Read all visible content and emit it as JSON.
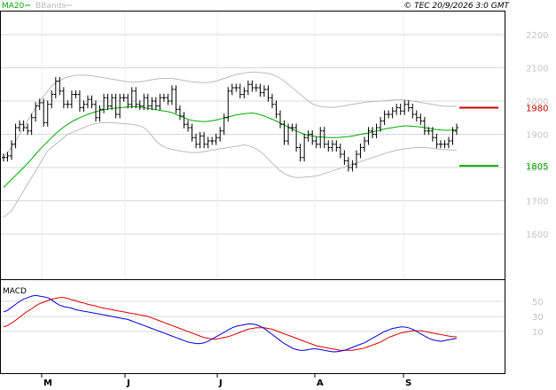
{
  "header": {
    "copyright": "© TEC 20/9/2026 3:0 GMT",
    "legend_ma": "MA20",
    "legend_bb": "BBands"
  },
  "chart_data": [
    {
      "type": "line",
      "title": "",
      "overlays": [
        "MA20",
        "BBands"
      ],
      "y_ticks": [
        "2200",
        "2100",
        "2000",
        "1900",
        "1800",
        "1700",
        "1600"
      ],
      "ylim": [
        1500,
        2300
      ],
      "x_ticks": [
        "M",
        "J",
        "J",
        "A",
        "S"
      ],
      "grid": true,
      "colors": {
        "price": "#000000",
        "ma": "#00aa00",
        "bbands": "#bbbbbb",
        "resistance": "#cc0000",
        "support": "#00aa00"
      },
      "levels": [
        {
          "label": "1980",
          "value": 1980,
          "kind": "resistance"
        },
        {
          "label": "1805",
          "value": 1805,
          "kind": "support"
        }
      ],
      "price_close": [
        1830,
        1835,
        1870,
        1920,
        1930,
        1920,
        1910,
        1950,
        1985,
        1995,
        1935,
        1990,
        2020,
        2060,
        2030,
        1990,
        1990,
        2020,
        2020,
        1980,
        1990,
        2005,
        1990,
        1950,
        1975,
        2010,
        1985,
        2010,
        1960,
        2010,
        2010,
        1990,
        2030,
        1990,
        1985,
        2010,
        1985,
        2000,
        1985,
        2010,
        2010,
        2000,
        2035,
        1975,
        1955,
        1930,
        1920,
        1890,
        1870,
        1895,
        1870,
        1880,
        1880,
        1890,
        1910,
        1950,
        2030,
        2040,
        2040,
        2020,
        2030,
        2050,
        2040,
        2040,
        2025,
        2035,
        2010,
        1990,
        1960,
        1930,
        1880,
        1920,
        1920,
        1860,
        1830,
        1890,
        1900,
        1880,
        1870,
        1910,
        1870,
        1860,
        1870,
        1860,
        1840,
        1820,
        1800,
        1810,
        1840,
        1860,
        1880,
        1910,
        1900,
        1920,
        1940,
        1960,
        1960,
        1970,
        1980,
        1970,
        1990,
        1980,
        1960,
        1950,
        1940,
        1910,
        1910,
        1890,
        1870,
        1870,
        1870,
        1880,
        1910,
        1920
      ],
      "ma20": [
        1740,
        1752,
        1764,
        1776,
        1788,
        1800,
        1812,
        1826,
        1840,
        1854,
        1866,
        1878,
        1890,
        1902,
        1912,
        1922,
        1930,
        1938,
        1944,
        1950,
        1955,
        1960,
        1964,
        1968,
        1971,
        1974,
        1976,
        1978,
        1979,
        1980,
        1981,
        1982,
        1983,
        1983,
        1982,
        1980,
        1978,
        1976,
        1974,
        1972,
        1970,
        1968,
        1965,
        1960,
        1955,
        1950,
        1945,
        1942,
        1940,
        1939,
        1938,
        1939,
        1941,
        1943,
        1946,
        1949,
        1952,
        1955,
        1958,
        1960,
        1962,
        1963,
        1964,
        1962,
        1959,
        1955,
        1950,
        1945,
        1940,
        1934,
        1928,
        1922,
        1916,
        1910,
        1905,
        1900,
        1897,
        1895,
        1893,
        1892,
        1891,
        1890,
        1890,
        1890,
        1891,
        1892,
        1893,
        1895,
        1897,
        1900,
        1902,
        1904,
        1907,
        1910,
        1913,
        1916,
        1918,
        1920,
        1922,
        1924,
        1925,
        1925,
        1924,
        1923,
        1922,
        1920,
        1918,
        1916,
        1914,
        1913,
        1912,
        1912,
        1913,
        1914
      ],
      "bb_upper": [
        1830,
        1845,
        1860,
        1880,
        1900,
        1920,
        1940,
        1960,
        1980,
        2000,
        2015,
        2030,
        2045,
        2055,
        2062,
        2068,
        2072,
        2075,
        2077,
        2078,
        2078,
        2077,
        2076,
        2074,
        2072,
        2070,
        2068,
        2066,
        2064,
        2062,
        2060,
        2058,
        2057,
        2057,
        2058,
        2060,
        2062,
        2064,
        2066,
        2068,
        2068,
        2068,
        2068,
        2066,
        2064,
        2062,
        2060,
        2058,
        2057,
        2056,
        2055,
        2056,
        2058,
        2060,
        2064,
        2068,
        2072,
        2076,
        2080,
        2082,
        2084,
        2086,
        2087,
        2087,
        2086,
        2085,
        2083,
        2080,
        2075,
        2068,
        2060,
        2050,
        2040,
        2030,
        2020,
        2010,
        2000,
        1992,
        1987,
        1984,
        1982,
        1981,
        1981,
        1982,
        1984,
        1986,
        1988,
        1990,
        1992,
        1994,
        1996,
        1997,
        1998,
        1999,
        2000,
        2001,
        2002,
        2003,
        2004,
        2004,
        2003,
        2002,
        2000,
        1998,
        1996,
        1994,
        1992,
        1990,
        1988,
        1986,
        1985,
        1984,
        1984,
        1985
      ],
      "bb_lower": [
        1650,
        1660,
        1670,
        1690,
        1710,
        1730,
        1750,
        1770,
        1790,
        1810,
        1830,
        1850,
        1860,
        1870,
        1880,
        1890,
        1900,
        1905,
        1910,
        1915,
        1920,
        1925,
        1930,
        1932,
        1934,
        1935,
        1935,
        1935,
        1934,
        1933,
        1932,
        1931,
        1930,
        1928,
        1925,
        1920,
        1910,
        1895,
        1880,
        1870,
        1862,
        1858,
        1855,
        1852,
        1850,
        1848,
        1846,
        1845,
        1845,
        1846,
        1848,
        1850,
        1852,
        1854,
        1856,
        1858,
        1860,
        1862,
        1864,
        1866,
        1868,
        1866,
        1862,
        1856,
        1848,
        1838,
        1826,
        1814,
        1802,
        1790,
        1782,
        1776,
        1772,
        1770,
        1770,
        1771,
        1772,
        1773,
        1775,
        1778,
        1782,
        1786,
        1790,
        1794,
        1798,
        1802,
        1806,
        1810,
        1814,
        1818,
        1822,
        1826,
        1830,
        1834,
        1838,
        1842,
        1846,
        1849,
        1852,
        1854,
        1856,
        1858,
        1859,
        1860,
        1860,
        1860,
        1859,
        1858,
        1856,
        1855,
        1854,
        1853,
        1853,
        1852
      ]
    },
    {
      "type": "line",
      "title": "MACD",
      "y_ticks": [
        "50",
        "30",
        "10"
      ],
      "ylim": [
        -20,
        70
      ],
      "x_ticks": [
        "M",
        "J",
        "J",
        "A",
        "S"
      ],
      "grid": true,
      "colors": {
        "macd": "#0000dd",
        "signal": "#dd0000"
      },
      "macd": [
        36,
        38,
        42,
        46,
        50,
        53,
        55,
        57,
        58,
        57,
        56,
        55,
        52,
        48,
        45,
        43,
        42,
        41,
        39,
        38,
        37,
        36,
        35,
        34,
        33,
        32,
        31,
        30,
        29,
        28,
        27,
        26,
        24,
        22,
        20,
        18,
        16,
        14,
        12,
        10,
        8,
        6,
        4,
        2,
        0,
        -2,
        -4,
        -5,
        -6,
        -6,
        -5,
        -3,
        0,
        3,
        6,
        9,
        12,
        15,
        17,
        18,
        19,
        20,
        20,
        19,
        17,
        14,
        10,
        6,
        2,
        -2,
        -6,
        -9,
        -12,
        -14,
        -15,
        -15,
        -14,
        -13,
        -13,
        -14,
        -15,
        -16,
        -17,
        -17,
        -16,
        -15,
        -13,
        -11,
        -9,
        -7,
        -5,
        -2,
        1,
        4,
        7,
        10,
        12,
        14,
        15,
        16,
        16,
        15,
        13,
        10,
        7,
        4,
        1,
        -1,
        -2,
        -3,
        -2,
        -1,
        0,
        1
      ],
      "signal": [
        16,
        18,
        21,
        25,
        29,
        33,
        37,
        40,
        44,
        47,
        49,
        51,
        53,
        54,
        55,
        55,
        54,
        52,
        51,
        49,
        48,
        46,
        45,
        44,
        42,
        41,
        40,
        39,
        38,
        37,
        36,
        35,
        34,
        33,
        32,
        31,
        30,
        28,
        26,
        24,
        22,
        20,
        18,
        16,
        14,
        12,
        10,
        8,
        6,
        4,
        2,
        1,
        0,
        0,
        1,
        2,
        3,
        5,
        7,
        9,
        11,
        13,
        14,
        15,
        15,
        15,
        14,
        13,
        11,
        9,
        7,
        5,
        3,
        1,
        -1,
        -3,
        -5,
        -7,
        -9,
        -10,
        -11,
        -12,
        -13,
        -14,
        -15,
        -15,
        -15,
        -15,
        -14,
        -13,
        -12,
        -10,
        -8,
        -6,
        -4,
        -1,
        2,
        4,
        6,
        8,
        9,
        10,
        11,
        11,
        11,
        10,
        9,
        8,
        7,
        6,
        5,
        4,
        3,
        3
      ]
    }
  ]
}
